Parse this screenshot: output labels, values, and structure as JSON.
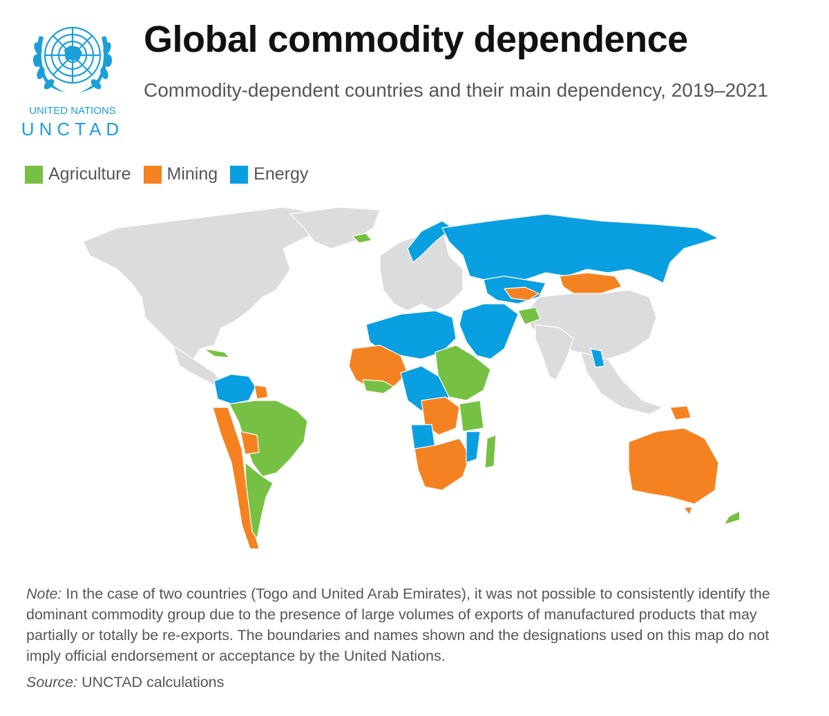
{
  "header": {
    "title": "Global commodity dependence",
    "subtitle": "Commodity-dependent countries and their main dependency, 2019–2021"
  },
  "logo": {
    "line1": "UNITED NATIONS",
    "line2": "UNCTAD",
    "color": "#1a9fd9"
  },
  "legend": {
    "items": [
      {
        "label": "Agriculture",
        "color": "#76c043"
      },
      {
        "label": "Mining",
        "color": "#f58220"
      },
      {
        "label": "Energy",
        "color": "#0a9fe0"
      }
    ]
  },
  "map": {
    "base_color": "#dcdcdc",
    "border_color": "#ffffff"
  },
  "note": {
    "label": "Note:",
    "text": " In the case of two countries (Togo and United Arab Emirates), it was not possible to consistently identify the dominant commodity group due to the presence of large volumes of exports of manufactured products that may partially or totally be re-exports. The boundaries and names shown and the designations used on this map do not imply official endorsement or acceptance by the United Nations."
  },
  "source": {
    "label": "Source:",
    "text": " UNCTAD calculations"
  }
}
